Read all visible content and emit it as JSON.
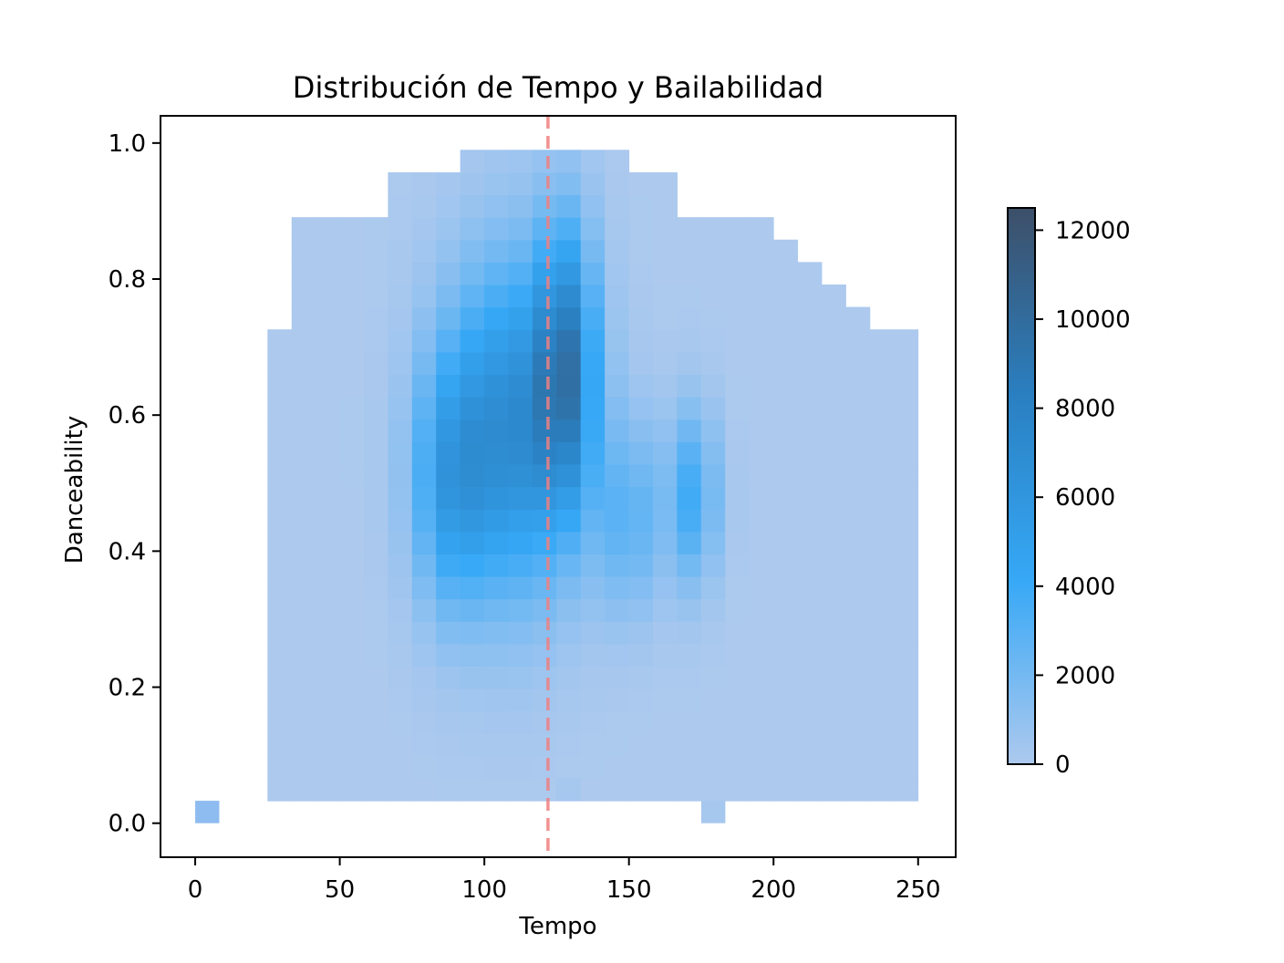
{
  "chart_data": {
    "type": "heatmap",
    "title": "Distribución de Tempo y Bailabilidad",
    "xlabel": "Tempo",
    "ylabel": "Danceability",
    "xlim": [
      -12,
      263
    ],
    "ylim": [
      -0.05,
      1.04
    ],
    "xticks": [
      0,
      50,
      100,
      150,
      200,
      250
    ],
    "yticks": [
      0.0,
      0.2,
      0.4,
      0.6,
      0.8,
      1.0
    ],
    "x_bin_width": 8.33,
    "y_bin_width": 0.033,
    "reference_line": {
      "axis": "x",
      "value": 122,
      "style": "dashed",
      "color": "#f08080"
    },
    "colorbar": {
      "min": 0,
      "max": 12500,
      "ticks": [
        0,
        2000,
        4000,
        6000,
        8000,
        10000,
        12000
      ]
    },
    "colormap": [
      "#adc9ee",
      "#36a8f6",
      "#2a7fc0",
      "#3d4f68"
    ],
    "grid": false,
    "legend": "none"
  }
}
